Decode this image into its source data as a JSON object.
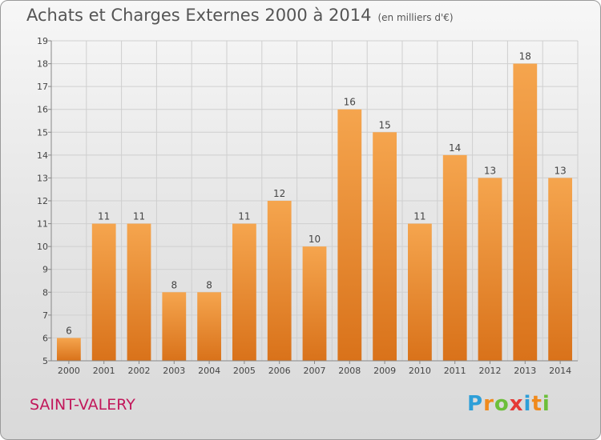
{
  "chart_data": {
    "type": "bar",
    "title": "Achats et Charges Externes 2000 à 2014",
    "subtitle": "(en milliers d'€)",
    "categories": [
      "2000",
      "2001",
      "2002",
      "2003",
      "2004",
      "2005",
      "2006",
      "2007",
      "2008",
      "2009",
      "2010",
      "2011",
      "2012",
      "2013",
      "2014"
    ],
    "values": [
      6,
      11,
      11,
      8,
      8,
      11,
      12,
      10,
      16,
      15,
      11,
      14,
      13,
      18,
      13
    ],
    "ylim": [
      5,
      19
    ],
    "yticks": [
      5,
      6,
      7,
      8,
      9,
      10,
      11,
      12,
      13,
      14,
      15,
      16,
      17,
      18,
      19
    ],
    "grid": true,
    "colors": {
      "bar_light": "#f5a54e",
      "bar_dark": "#d9721a",
      "grid": "#cfcfcf",
      "axis": "#888888"
    }
  },
  "commune": "SAINT-VALERY",
  "logo": {
    "letters": [
      "P",
      "r",
      "o",
      "x",
      "i",
      "t",
      "i"
    ],
    "colors": [
      "#2e9fd8",
      "#f08a1c",
      "#6cbf3a",
      "#e53935",
      "#2e9fd8",
      "#f08a1c",
      "#6cbf3a"
    ]
  }
}
